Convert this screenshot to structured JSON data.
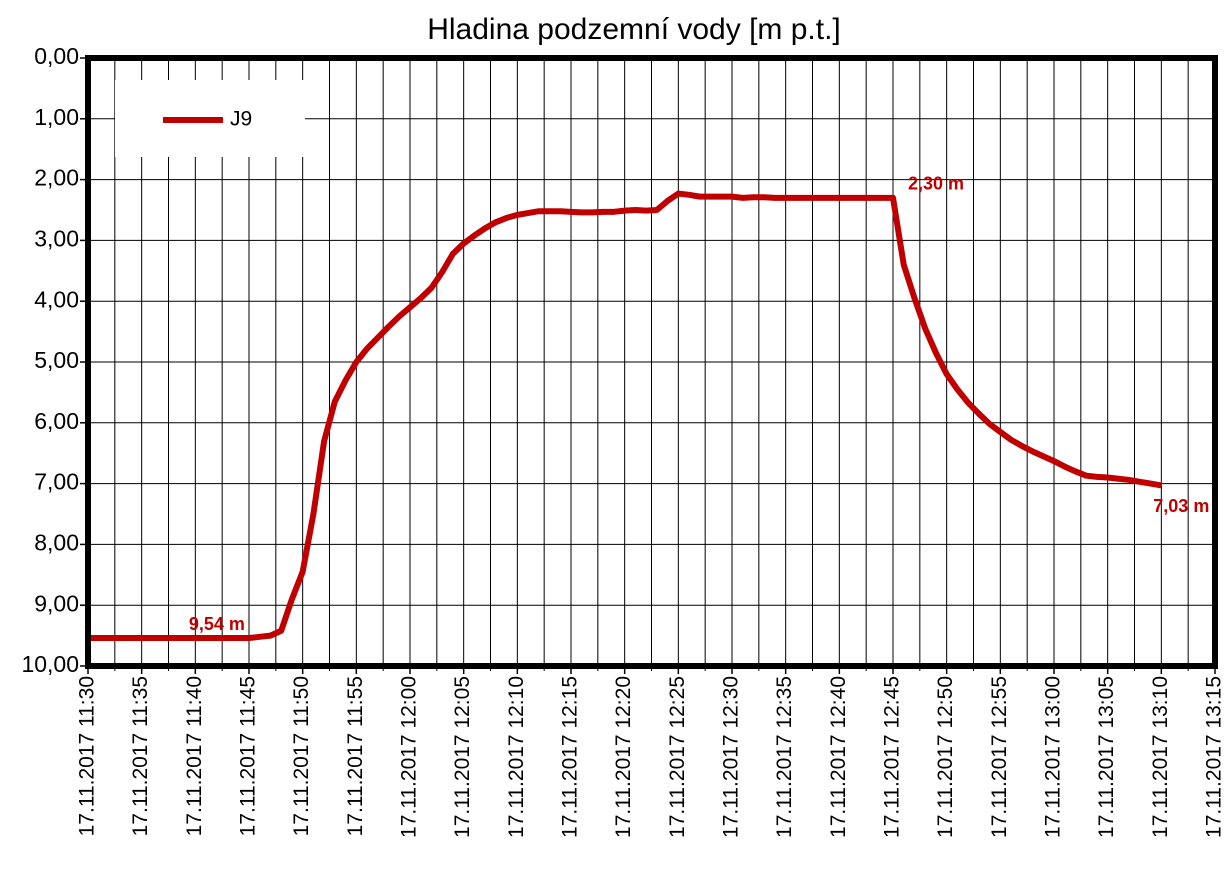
{
  "chart_data": {
    "type": "line",
    "title": "Hladina podzemní vody [m p.t.]",
    "x": [
      "17.11.2017 11:30",
      "17.11.2017 11:31",
      "17.11.2017 11:32",
      "17.11.2017 11:33",
      "17.11.2017 11:34",
      "17.11.2017 11:35",
      "17.11.2017 11:36",
      "17.11.2017 11:37",
      "17.11.2017 11:38",
      "17.11.2017 11:39",
      "17.11.2017 11:40",
      "17.11.2017 11:41",
      "17.11.2017 11:42",
      "17.11.2017 11:43",
      "17.11.2017 11:44",
      "17.11.2017 11:45",
      "17.11.2017 11:46",
      "17.11.2017 11:47",
      "17.11.2017 11:48",
      "17.11.2017 11:49",
      "17.11.2017 11:50",
      "17.11.2017 11:51",
      "17.11.2017 11:52",
      "17.11.2017 11:53",
      "17.11.2017 11:54",
      "17.11.2017 11:55",
      "17.11.2017 11:56",
      "17.11.2017 11:57",
      "17.11.2017 11:58",
      "17.11.2017 11:59",
      "17.11.2017 12:00",
      "17.11.2017 12:01",
      "17.11.2017 12:02",
      "17.11.2017 12:03",
      "17.11.2017 12:04",
      "17.11.2017 12:05",
      "17.11.2017 12:06",
      "17.11.2017 12:07",
      "17.11.2017 12:08",
      "17.11.2017 12:09",
      "17.11.2017 12:10",
      "17.11.2017 12:11",
      "17.11.2017 12:12",
      "17.11.2017 12:13",
      "17.11.2017 12:14",
      "17.11.2017 12:15",
      "17.11.2017 12:16",
      "17.11.2017 12:17",
      "17.11.2017 12:18",
      "17.11.2017 12:19",
      "17.11.2017 12:20",
      "17.11.2017 12:21",
      "17.11.2017 12:22",
      "17.11.2017 12:23",
      "17.11.2017 12:24",
      "17.11.2017 12:25",
      "17.11.2017 12:26",
      "17.11.2017 12:27",
      "17.11.2017 12:28",
      "17.11.2017 12:29",
      "17.11.2017 12:30",
      "17.11.2017 12:31",
      "17.11.2017 12:32",
      "17.11.2017 12:33",
      "17.11.2017 12:34",
      "17.11.2017 12:35",
      "17.11.2017 12:36",
      "17.11.2017 12:37",
      "17.11.2017 12:38",
      "17.11.2017 12:39",
      "17.11.2017 12:40",
      "17.11.2017 12:41",
      "17.11.2017 12:42",
      "17.11.2017 12:43",
      "17.11.2017 12:44",
      "17.11.2017 12:45",
      "17.11.2017 12:46",
      "17.11.2017 12:47",
      "17.11.2017 12:48",
      "17.11.2017 12:49",
      "17.11.2017 12:50",
      "17.11.2017 12:51",
      "17.11.2017 12:52",
      "17.11.2017 12:53",
      "17.11.2017 12:54",
      "17.11.2017 12:55",
      "17.11.2017 12:56",
      "17.11.2017 12:57",
      "17.11.2017 12:58",
      "17.11.2017 12:59",
      "17.11.2017 13:00",
      "17.11.2017 13:01",
      "17.11.2017 13:02",
      "17.11.2017 13:03",
      "17.11.2017 13:04",
      "17.11.2017 13:05",
      "17.11.2017 13:06",
      "17.11.2017 13:07",
      "17.11.2017 13:08",
      "17.11.2017 13:09",
      "17.11.2017 13:10"
    ],
    "series": [
      {
        "name": "J9",
        "color": "#c00000",
        "values": [
          9.54,
          9.54,
          9.54,
          9.54,
          9.54,
          9.54,
          9.54,
          9.54,
          9.54,
          9.54,
          9.54,
          9.54,
          9.54,
          9.54,
          9.54,
          9.54,
          9.52,
          9.5,
          9.42,
          8.9,
          8.45,
          7.5,
          6.3,
          5.65,
          5.3,
          5.0,
          4.78,
          4.6,
          4.42,
          4.25,
          4.1,
          3.95,
          3.78,
          3.52,
          3.22,
          3.05,
          2.92,
          2.8,
          2.7,
          2.63,
          2.58,
          2.55,
          2.52,
          2.52,
          2.52,
          2.53,
          2.54,
          2.54,
          2.53,
          2.53,
          2.51,
          2.5,
          2.51,
          2.5,
          2.35,
          2.23,
          2.25,
          2.28,
          2.28,
          2.28,
          2.28,
          2.3,
          2.29,
          2.29,
          2.3,
          2.3,
          2.3,
          2.3,
          2.3,
          2.3,
          2.3,
          2.3,
          2.3,
          2.3,
          2.3,
          2.3,
          3.4,
          3.95,
          4.45,
          4.85,
          5.2,
          5.45,
          5.67,
          5.85,
          6.02,
          6.15,
          6.28,
          6.38,
          6.47,
          6.55,
          6.63,
          6.72,
          6.8,
          6.87,
          6.89,
          6.9,
          6.92,
          6.94,
          6.97,
          7.0,
          7.03
        ],
        "value_labels": [
          null,
          null,
          null,
          null,
          null,
          null,
          null,
          null,
          "9,54 m",
          null,
          null,
          null,
          null,
          null,
          null,
          null,
          null,
          null,
          null,
          null,
          null,
          null,
          null,
          null,
          null,
          null,
          null,
          null,
          null,
          null,
          null,
          null,
          null,
          null,
          null,
          null,
          null,
          null,
          null,
          null,
          null,
          null,
          null,
          null,
          null,
          null,
          null,
          null,
          null,
          null,
          null,
          null,
          null,
          null,
          null,
          null,
          null,
          null,
          null,
          null,
          null,
          null,
          null,
          null,
          null,
          null,
          null,
          null,
          null,
          null,
          null,
          null,
          null,
          null,
          null,
          "2,30 m",
          null,
          null,
          null,
          null,
          null,
          null,
          null,
          null,
          null,
          null,
          null,
          null,
          null,
          null,
          null,
          null,
          null,
          null,
          null,
          null,
          null,
          null,
          null,
          null,
          "7,03 m"
        ]
      }
    ],
    "xlim": [
      "17.11.2017 11:30",
      "17.11.2017 13:15"
    ],
    "xticks": [
      "17.11.2017 11:30",
      "17.11.2017 11:35",
      "17.11.2017 11:40",
      "17.11.2017 11:45",
      "17.11.2017 11:50",
      "17.11.2017 11:55",
      "17.11.2017 12:00",
      "17.11.2017 12:05",
      "17.11.2017 12:10",
      "17.11.2017 12:15",
      "17.11.2017 12:20",
      "17.11.2017 12:25",
      "17.11.2017 12:30",
      "17.11.2017 12:35",
      "17.11.2017 12:40",
      "17.11.2017 12:45",
      "17.11.2017 12:50",
      "17.11.2017 12:55",
      "17.11.2017 13:00",
      "17.11.2017 13:05",
      "17.11.2017 13:10",
      "17.11.2017 13:15"
    ],
    "ylim": [
      0,
      10
    ],
    "y_inverted": true,
    "yticks": [
      {
        "value": 0,
        "label": "0,00"
      },
      {
        "value": 1,
        "label": "1,00"
      },
      {
        "value": 2,
        "label": "2,00"
      },
      {
        "value": 3,
        "label": "3,00"
      },
      {
        "value": 4,
        "label": "4,00"
      },
      {
        "value": 5,
        "label": "5,00"
      },
      {
        "value": 6,
        "label": "6,00"
      },
      {
        "value": 7,
        "label": "7,00"
      },
      {
        "value": 8,
        "label": "8,00"
      },
      {
        "value": 9,
        "label": "9,00"
      },
      {
        "value": 10,
        "label": "10,00"
      }
    ],
    "grid": true,
    "x_minor_grid": true,
    "legend": "upper left"
  }
}
